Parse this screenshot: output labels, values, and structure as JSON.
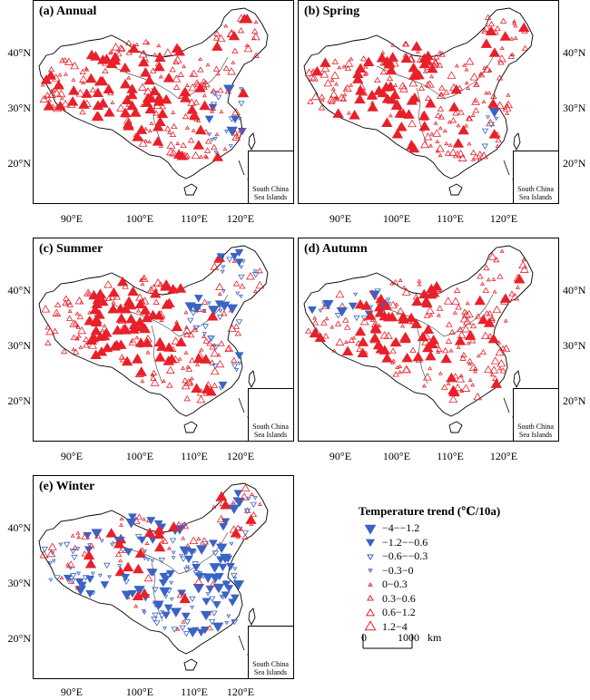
{
  "panels": [
    {
      "id": "annual",
      "title": "(a) Annual",
      "pattern": "mostly_warming"
    },
    {
      "id": "spring",
      "title": "(b) Spring",
      "pattern": "strong_warming"
    },
    {
      "id": "summer",
      "title": "(c) Summer",
      "pattern": "mixed_warming"
    },
    {
      "id": "autumn",
      "title": "(d) Autumn",
      "pattern": "strong_warming_east"
    },
    {
      "id": "winter",
      "title": "(e) Winter",
      "pattern": "cooling_east"
    }
  ],
  "inset_label": [
    "South China",
    "Sea Islands"
  ],
  "x_ticks": [
    "90°E",
    "100°E",
    "110°E",
    "120°E"
  ],
  "y_ticks": [
    "40°N",
    "30°N",
    "20°N"
  ],
  "legend": {
    "title": "Temperature trend (℃/10a)",
    "items": [
      {
        "label": "−4−−1.2",
        "color": "#3a63c4",
        "direction": "down",
        "size": 5.5
      },
      {
        "label": "−1.2−−0.6",
        "color": "#3a63c4",
        "direction": "down",
        "size": 4.2
      },
      {
        "label": "−0.6−−0.3",
        "color": "#3a63c4",
        "direction": "down",
        "size": 3.0
      },
      {
        "label": "−0.3−0",
        "color": "#3a63c4",
        "direction": "down",
        "size": 1.8
      },
      {
        "label": "0−0.3",
        "color": "#e8202a",
        "direction": "up",
        "size": 1.8
      },
      {
        "label": "0.3−0.6",
        "color": "#e8202a",
        "direction": "up",
        "size": 3.0
      },
      {
        "label": "0.6−1.2",
        "color": "#e8202a",
        "direction": "up",
        "size": 4.2
      },
      {
        "label": "1.2−4",
        "color": "#e8202a",
        "direction": "up",
        "size": 5.5
      }
    ]
  },
  "scale_bar": {
    "left_label": "0",
    "right_label": "1000",
    "unit": "km"
  },
  "colors": {
    "warming": "#e8202a",
    "cooling": "#3a63c4",
    "outline": "#000000"
  }
}
